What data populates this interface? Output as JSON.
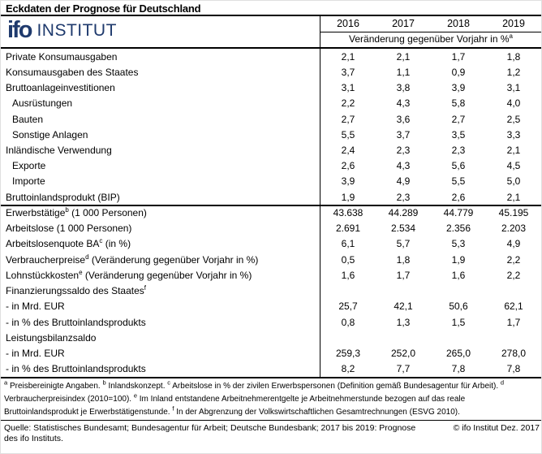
{
  "title": "Eckdaten der Prognose für Deutschland",
  "logo": {
    "ifo": "ifo",
    "institut": "INSTITUT"
  },
  "colors": {
    "brand_navy": "#1f3a6d",
    "line": "#000000"
  },
  "chart_data": {
    "type": "table",
    "title": "Eckdaten der Prognose für Deutschland",
    "columns": [
      "2016",
      "2017",
      "2018",
      "2019"
    ],
    "subheader": {
      "text": "Veränderung gegenüber Vorjahr in %",
      "sup": "a"
    },
    "rows": [
      {
        "pre": "Private Konsumausgaben",
        "sup": "",
        "post": "",
        "indent": false,
        "values": [
          "2,1",
          "2,1",
          "1,7",
          "1,8"
        ]
      },
      {
        "pre": "Konsumausgaben des Staates",
        "sup": "",
        "post": "",
        "indent": false,
        "values": [
          "3,7",
          "1,1",
          "0,9",
          "1,2"
        ]
      },
      {
        "pre": "Bruttoanlageinvestitionen",
        "sup": "",
        "post": "",
        "indent": false,
        "values": [
          "3,1",
          "3,8",
          "3,9",
          "3,1"
        ]
      },
      {
        "pre": "Ausrüstungen",
        "sup": "",
        "post": "",
        "indent": true,
        "values": [
          "2,2",
          "4,3",
          "5,8",
          "4,0"
        ]
      },
      {
        "pre": "Bauten",
        "sup": "",
        "post": "",
        "indent": true,
        "values": [
          "2,7",
          "3,6",
          "2,7",
          "2,5"
        ]
      },
      {
        "pre": "Sonstige Anlagen",
        "sup": "",
        "post": "",
        "indent": true,
        "values": [
          "5,5",
          "3,7",
          "3,5",
          "3,3"
        ]
      },
      {
        "pre": "Inländische Verwendung",
        "sup": "",
        "post": "",
        "indent": false,
        "values": [
          "2,4",
          "2,3",
          "2,3",
          "2,1"
        ]
      },
      {
        "pre": "Exporte",
        "sup": "",
        "post": "",
        "indent": true,
        "values": [
          "2,6",
          "4,3",
          "5,6",
          "4,5"
        ]
      },
      {
        "pre": "Importe",
        "sup": "",
        "post": "",
        "indent": true,
        "values": [
          "3,9",
          "4,9",
          "5,5",
          "5,0"
        ]
      },
      {
        "pre": "Bruttoinlandsprodukt (BIP)",
        "sup": "",
        "post": "",
        "indent": false,
        "values": [
          "1,9",
          "2,3",
          "2,6",
          "2,1"
        ]
      },
      {
        "pre": "Erwerbstätige",
        "sup": "b",
        "post": " (1 000 Personen)",
        "indent": false,
        "values": [
          "43.638",
          "44.289",
          "44.779",
          "45.195"
        ]
      },
      {
        "pre": "Arbeitslose (1 000 Personen)",
        "sup": "",
        "post": "",
        "indent": false,
        "values": [
          "2.691",
          "2.534",
          "2.356",
          "2.203"
        ]
      },
      {
        "pre": "Arbeitslosenquote BA",
        "sup": "c",
        "post": " (in %)",
        "indent": false,
        "values": [
          "6,1",
          "5,7",
          "5,3",
          "4,9"
        ]
      },
      {
        "pre": "Verbraucherpreise",
        "sup": "d",
        "post": " (Veränderung gegenüber Vorjahr in %)",
        "indent": false,
        "values": [
          "0,5",
          "1,8",
          "1,9",
          "2,2"
        ]
      },
      {
        "pre": "Lohnstückkosten",
        "sup": "e",
        "post": " (Veränderung gegenüber Vorjahr in %)",
        "indent": false,
        "values": [
          "1,6",
          "1,7",
          "1,6",
          "2,2"
        ]
      },
      {
        "pre": "Finanzierungssaldo des Staates",
        "sup": "f",
        "post": "",
        "indent": false,
        "values": [
          "",
          "",
          "",
          ""
        ]
      },
      {
        "pre": "- in Mrd. EUR",
        "sup": "",
        "post": "",
        "indent": false,
        "values": [
          "25,7",
          "42,1",
          "50,6",
          "62,1"
        ]
      },
      {
        "pre": "- in % des Bruttoinlandsprodukts",
        "sup": "",
        "post": "",
        "indent": false,
        "values": [
          "0,8",
          "1,3",
          "1,5",
          "1,7"
        ]
      },
      {
        "pre": "Leistungsbilanzsaldo",
        "sup": "",
        "post": "",
        "indent": false,
        "values": [
          "",
          "",
          "",
          ""
        ]
      },
      {
        "pre": "- in Mrd. EUR",
        "sup": "",
        "post": "",
        "indent": false,
        "values": [
          "259,3",
          "252,0",
          "265,0",
          "278,0"
        ]
      },
      {
        "pre": "- in % des Bruttoinlandsprodukts",
        "sup": "",
        "post": "",
        "indent": false,
        "values": [
          "8,2",
          "7,7",
          "7,8",
          "7,8"
        ]
      }
    ]
  },
  "footnotes": [
    {
      "sup": "a",
      "text": "Preisbereinigte Angaben."
    },
    {
      "sup": "b",
      "text": "Inlandskonzept."
    },
    {
      "sup": "c",
      "text": "Arbeitslose in % der zivilen Erwerbspersonen (Definition gemäß Bundesagentur für Arbeit)."
    },
    {
      "sup": "d",
      "text": "Verbraucherpreisindex (2010=100)."
    },
    {
      "sup": "e",
      "text": "Im Inland entstandene Arbeitnehmerentgelte je Arbeitnehmerstunde bezogen auf das reale Bruttoinlandsprodukt je Erwerbstätigenstunde."
    },
    {
      "sup": "f",
      "text": "In der Abgrenzung der Volkswirtschaftlichen Gesamtrechnungen (ESVG 2010)."
    }
  ],
  "source": {
    "quelle": "Quelle: Statistisches Bundesamt; Bundesagentur für Arbeit; Deutsche Bundesbank; 2017 bis 2019: Prognose des ifo Instituts.",
    "copyright": "© ifo Institut Dez. 2017"
  }
}
